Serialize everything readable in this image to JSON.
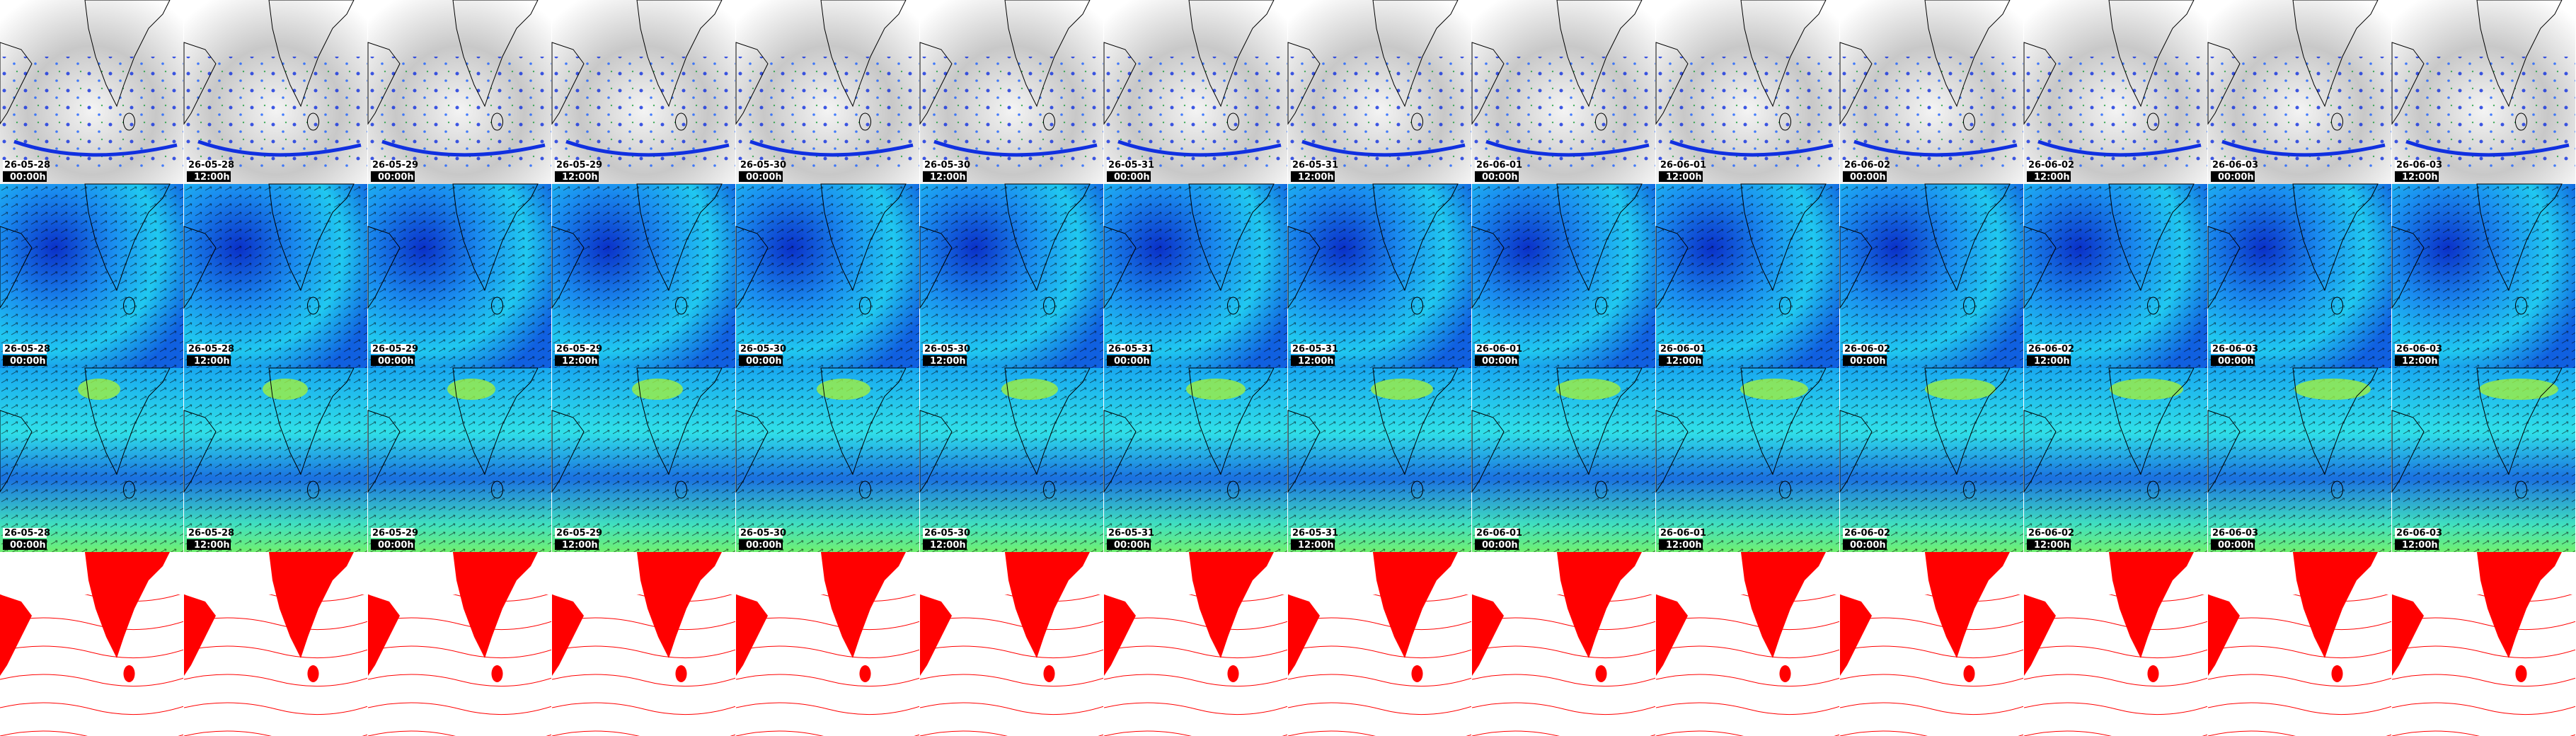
{
  "columns": [
    {
      "date": "26-05-28",
      "time": "00:00h"
    },
    {
      "date": "26-05-28",
      "time": "12:00h"
    },
    {
      "date": "26-05-29",
      "time": "00:00h"
    },
    {
      "date": "26-05-29",
      "time": "12:00h"
    },
    {
      "date": "26-05-30",
      "time": "00:00h"
    },
    {
      "date": "26-05-30",
      "time": "12:00h"
    },
    {
      "date": "26-05-31",
      "time": "00:00h"
    },
    {
      "date": "26-05-31",
      "time": "12:00h"
    },
    {
      "date": "26-06-01",
      "time": "00:00h"
    },
    {
      "date": "26-06-01",
      "time": "12:00h"
    },
    {
      "date": "26-06-02",
      "time": "00:00h"
    },
    {
      "date": "26-06-02",
      "time": "12:00h"
    },
    {
      "date": "26-06-03",
      "time": "00:00h"
    },
    {
      "date": "26-06-03",
      "time": "12:00h"
    }
  ]
}
